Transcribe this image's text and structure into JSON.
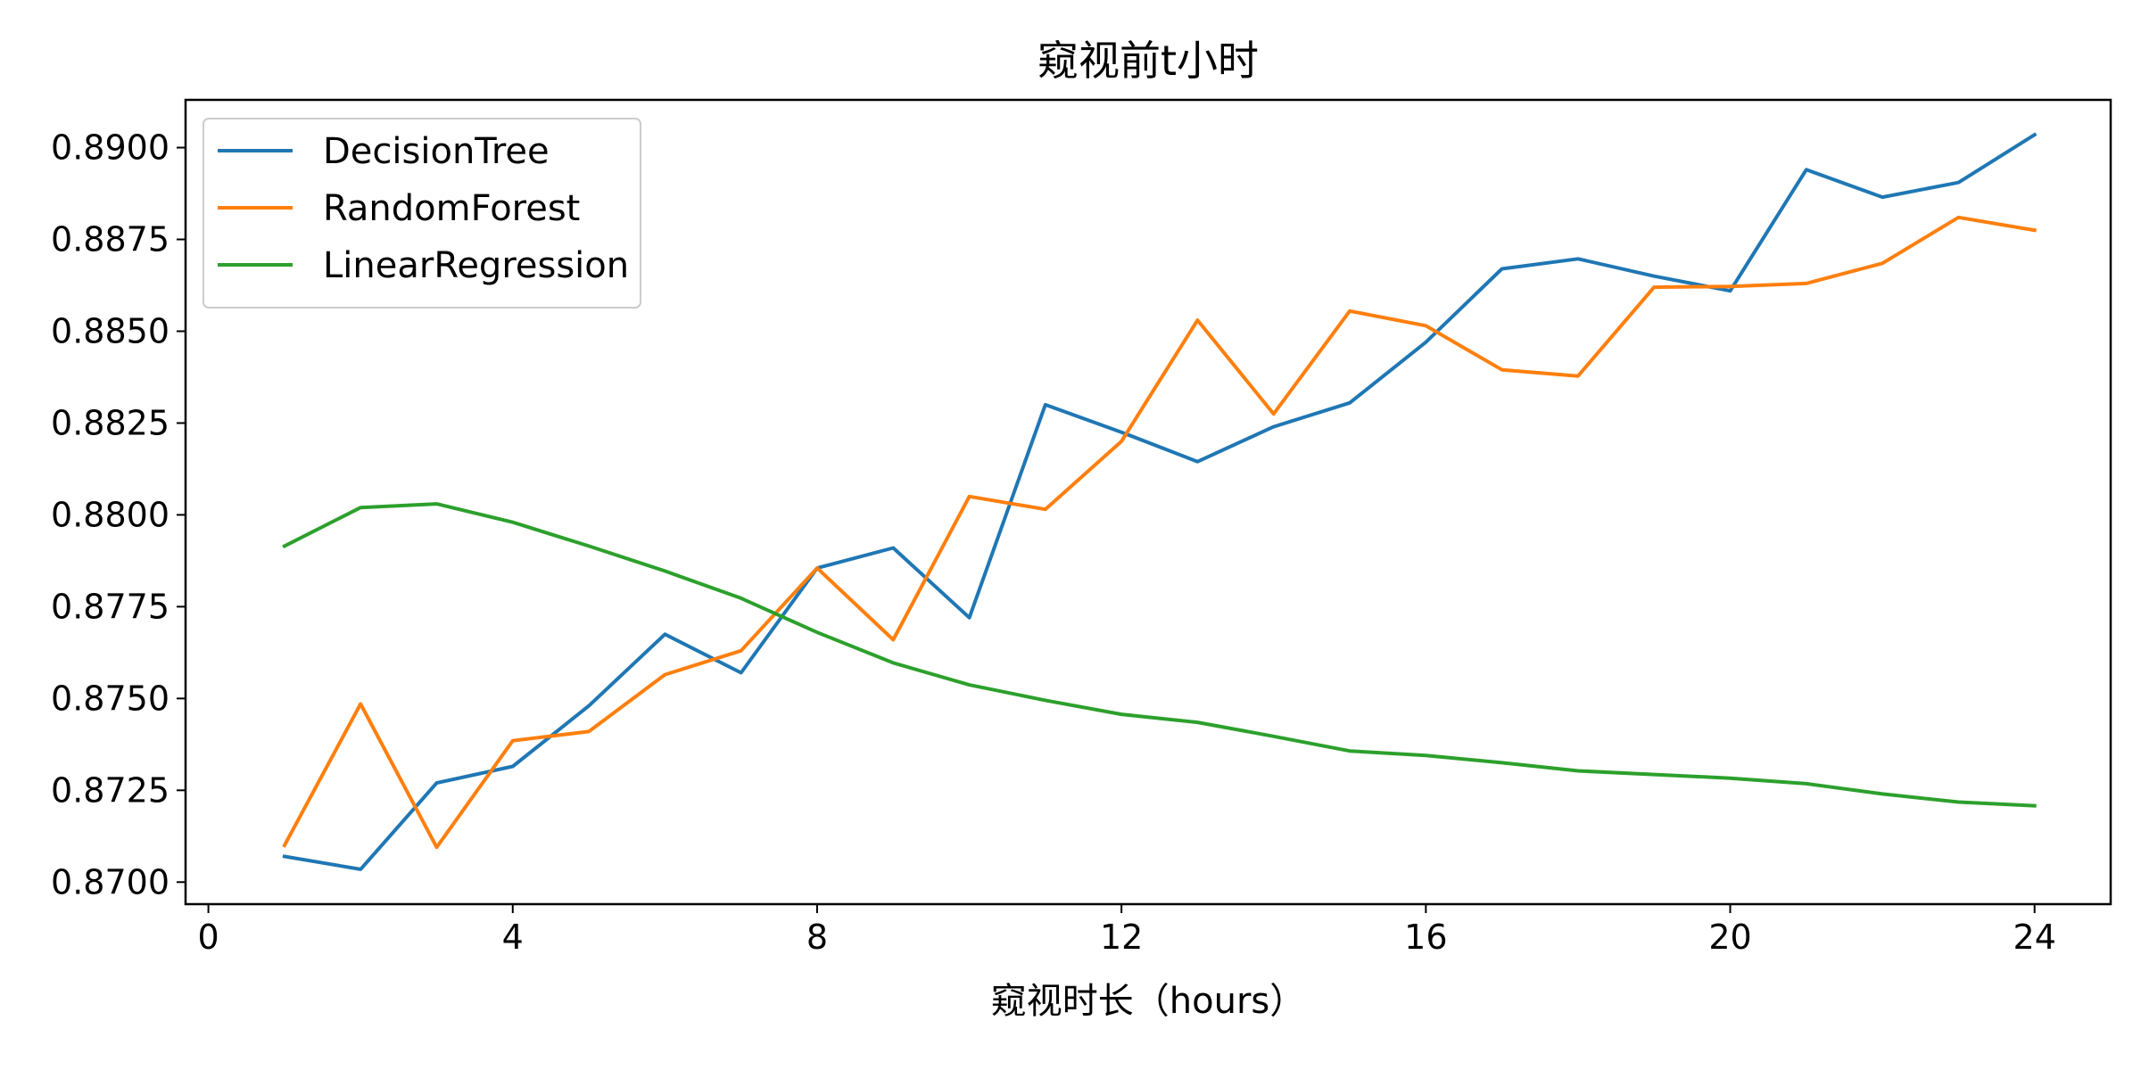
{
  "chart_data": {
    "type": "line",
    "title": "窥视前t小时",
    "xlabel": "窥视时长（hours）",
    "ylabel": "",
    "xlim": [
      -0.3,
      25
    ],
    "ylim": [
      0.8694,
      0.8913
    ],
    "xticks": [
      0,
      4,
      8,
      12,
      16,
      20,
      24
    ],
    "xtick_labels": [
      "0",
      "4",
      "8",
      "12",
      "16",
      "20",
      "24"
    ],
    "yticks": [
      0.87,
      0.8725,
      0.875,
      0.8775,
      0.88,
      0.8825,
      0.885,
      0.8875,
      0.89
    ],
    "ytick_labels": [
      "0.8700",
      "0.8725",
      "0.8750",
      "0.8775",
      "0.8800",
      "0.8825",
      "0.8850",
      "0.8875",
      "0.8900"
    ],
    "grid": false,
    "legend_position": "top-left",
    "x": [
      1,
      2,
      3,
      4,
      5,
      6,
      7,
      8,
      9,
      10,
      11,
      12,
      13,
      14,
      15,
      16,
      17,
      18,
      19,
      20,
      21,
      22,
      23,
      24
    ],
    "series": [
      {
        "name": "DecisionTree",
        "color": "#1f77b4",
        "values": [
          0.8707,
          0.87035,
          0.8727,
          0.87315,
          0.8748,
          0.87675,
          0.8757,
          0.87855,
          0.8791,
          0.8772,
          0.883,
          0.88225,
          0.88145,
          0.8824,
          0.88305,
          0.8847,
          0.8867,
          0.88697,
          0.8865,
          0.8861,
          0.8894,
          0.88865,
          0.88905,
          0.89035
        ]
      },
      {
        "name": "RandomForest",
        "color": "#ff7f0e",
        "values": [
          0.871,
          0.87485,
          0.87095,
          0.87385,
          0.8741,
          0.87565,
          0.8763,
          0.87855,
          0.8766,
          0.8805,
          0.88015,
          0.882,
          0.8853,
          0.88275,
          0.88555,
          0.88515,
          0.88395,
          0.88378,
          0.8862,
          0.88622,
          0.8863,
          0.88685,
          0.8881,
          0.88775
        ]
      },
      {
        "name": "LinearRegression",
        "color": "#2ca02c",
        "values": [
          0.87915,
          0.8802,
          0.8803,
          0.8798,
          0.87915,
          0.87847,
          0.87773,
          0.8768,
          0.87597,
          0.87537,
          0.87495,
          0.87457,
          0.87435,
          0.87397,
          0.87357,
          0.87345,
          0.87325,
          0.87303,
          0.87293,
          0.87283,
          0.87268,
          0.8724,
          0.87218,
          0.87208
        ]
      }
    ]
  }
}
